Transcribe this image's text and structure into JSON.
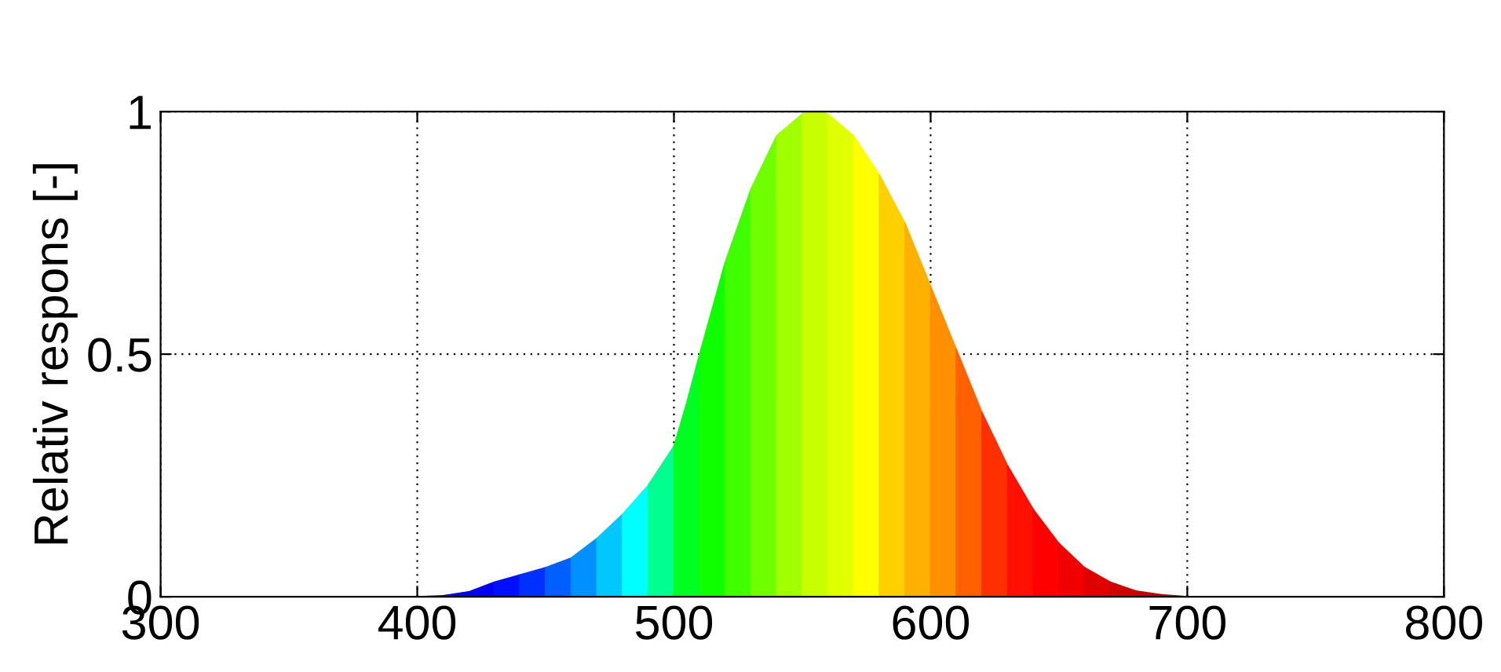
{
  "chart_data": {
    "type": "area",
    "ylabel": "Relativ respons [-]",
    "series": [
      {
        "x": [
          400,
          410
        ],
        "values": [
          0,
          0.002
        ],
        "color": "#1a00d0"
      },
      {
        "x": [
          410,
          420
        ],
        "values": [
          0.002,
          0.01
        ],
        "color": "#0000e0"
      },
      {
        "x": [
          420,
          430
        ],
        "values": [
          0.01,
          0.03
        ],
        "color": "#0000f0"
      },
      {
        "x": [
          430,
          440
        ],
        "values": [
          0.03,
          0.045
        ],
        "color": "#0010ff"
      },
      {
        "x": [
          440,
          450
        ],
        "values": [
          0.045,
          0.06
        ],
        "color": "#0030ff"
      },
      {
        "x": [
          450,
          460
        ],
        "values": [
          0.06,
          0.08
        ],
        "color": "#0060ff"
      },
      {
        "x": [
          460,
          470
        ],
        "values": [
          0.08,
          0.12
        ],
        "color": "#0090ff"
      },
      {
        "x": [
          470,
          480
        ],
        "values": [
          0.12,
          0.17
        ],
        "color": "#00c8ff"
      },
      {
        "x": [
          480,
          490
        ],
        "values": [
          0.17,
          0.23
        ],
        "color": "#00ffff"
      },
      {
        "x": [
          490,
          500
        ],
        "values": [
          0.23,
          0.31
        ],
        "color": "#00ff90"
      },
      {
        "x": [
          500,
          505,
          510
        ],
        "values": [
          0.31,
          0.4,
          0.5
        ],
        "color": "#00ff20"
      },
      {
        "x": [
          510,
          520
        ],
        "values": [
          0.5,
          0.69
        ],
        "color": "#10ff00"
      },
      {
        "x": [
          520,
          530
        ],
        "values": [
          0.69,
          0.84
        ],
        "color": "#40ff00"
      },
      {
        "x": [
          530,
          540
        ],
        "values": [
          0.84,
          0.95
        ],
        "color": "#70ff00"
      },
      {
        "x": [
          540,
          550
        ],
        "values": [
          0.95,
          0.995
        ],
        "color": "#a0ff00"
      },
      {
        "x": [
          550,
          555,
          560
        ],
        "values": [
          0.995,
          1,
          0.995
        ],
        "color": "#c8ff00"
      },
      {
        "x": [
          560,
          570
        ],
        "values": [
          0.995,
          0.95
        ],
        "color": "#e0ff00"
      },
      {
        "x": [
          570,
          580
        ],
        "values": [
          0.95,
          0.87
        ],
        "color": "#ffff00"
      },
      {
        "x": [
          580,
          590
        ],
        "values": [
          0.87,
          0.77
        ],
        "color": "#ffd000"
      },
      {
        "x": [
          590,
          600
        ],
        "values": [
          0.77,
          0.64
        ],
        "color": "#ffb000"
      },
      {
        "x": [
          600,
          610
        ],
        "values": [
          0.64,
          0.51
        ],
        "color": "#ff9000"
      },
      {
        "x": [
          610,
          620
        ],
        "values": [
          0.51,
          0.38
        ],
        "color": "#ff6000"
      },
      {
        "x": [
          620,
          630
        ],
        "values": [
          0.38,
          0.27
        ],
        "color": "#ff3000"
      },
      {
        "x": [
          630,
          640
        ],
        "values": [
          0.27,
          0.18
        ],
        "color": "#ff1000"
      },
      {
        "x": [
          640,
          650
        ],
        "values": [
          0.18,
          0.11
        ],
        "color": "#ff0000"
      },
      {
        "x": [
          650,
          660
        ],
        "values": [
          0.11,
          0.06
        ],
        "color": "#f00000"
      },
      {
        "x": [
          660,
          670
        ],
        "values": [
          0.06,
          0.03
        ],
        "color": "#e00000"
      },
      {
        "x": [
          670,
          680
        ],
        "values": [
          0.03,
          0.012
        ],
        "color": "#d00000"
      },
      {
        "x": [
          680,
          690
        ],
        "values": [
          0.012,
          0.004
        ],
        "color": "#c00000"
      },
      {
        "x": [
          690,
          700
        ],
        "values": [
          0.004,
          0
        ],
        "color": "#b00000"
      }
    ],
    "xlim": [
      300,
      800
    ],
    "ylim": [
      0,
      1
    ],
    "xticks": [
      300,
      400,
      500,
      600,
      700,
      800
    ],
    "yticks": [
      0,
      0.5,
      1
    ],
    "grid": true
  }
}
